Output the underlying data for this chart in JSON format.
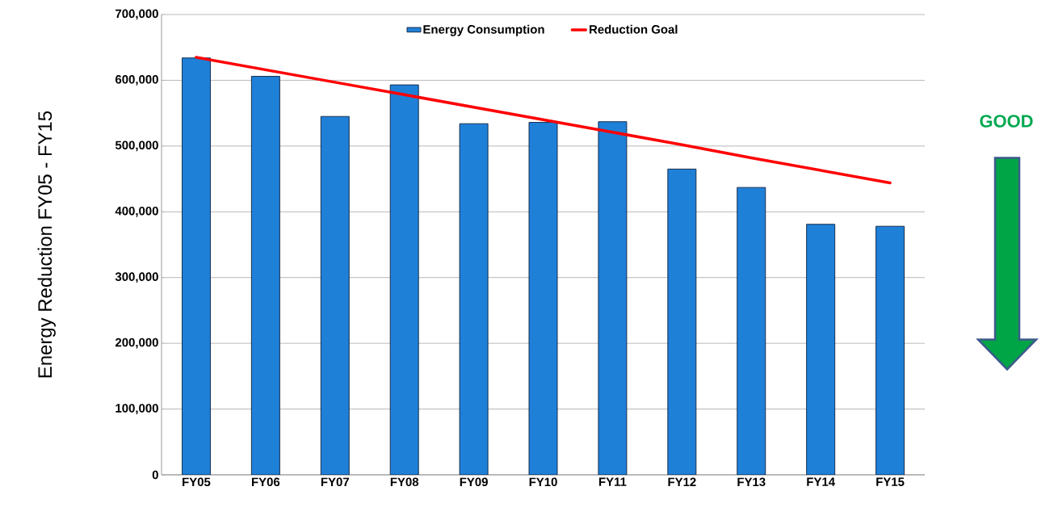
{
  "chart_data": {
    "type": "bar",
    "ylabel": "Energy Reduction FY05 - FY15",
    "categories": [
      "FY05",
      "FY06",
      "FY07",
      "FY08",
      "FY09",
      "FY10",
      "FY11",
      "FY12",
      "FY13",
      "FY14",
      "FY15"
    ],
    "series": [
      {
        "name": "Energy Consumption",
        "color": "#1f80d8",
        "values": [
          634000,
          606000,
          545000,
          593000,
          534000,
          536000,
          537000,
          465000,
          437000,
          381000,
          378000
        ]
      },
      {
        "name": "Reduction Goal",
        "type": "line",
        "color": "#ff0000",
        "values": [
          635000,
          616000,
          597000,
          578000,
          559000,
          540000,
          521000,
          502000,
          482000,
          463000,
          444000
        ]
      }
    ],
    "ylim": [
      0,
      700000
    ],
    "yticks": [
      0,
      {
        "value": 100000,
        "label": "100,000"
      },
      {
        "value": 200000,
        "label": "200,000"
      },
      {
        "value": 300000,
        "label": "300,000"
      },
      {
        "value": 400000,
        "label": "400,000"
      },
      {
        "value": 500000,
        "label": "500,000"
      },
      {
        "value": 600000,
        "label": "600,000"
      },
      {
        "value": 700000,
        "label": "700,000"
      }
    ],
    "grid": "y",
    "legend": "top",
    "marker": "none",
    "annotations": [
      "GOOD"
    ]
  }
}
